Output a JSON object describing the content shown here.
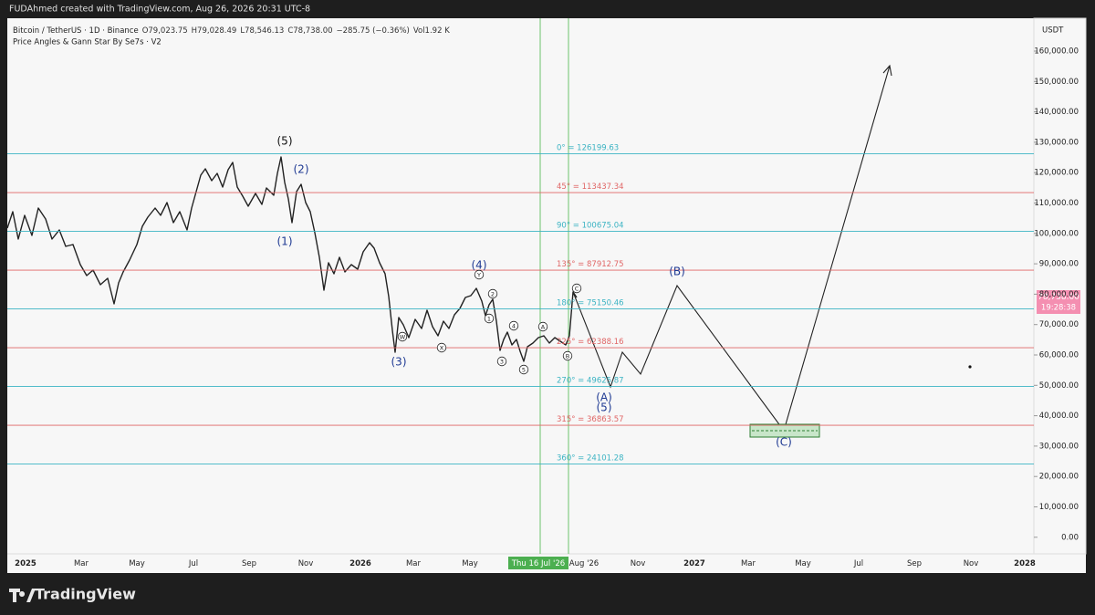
{
  "header": {
    "attribution": "FUDAhmed created with TradingView.com, Aug 26, 2026 20:31 UTC-8"
  },
  "legend": {
    "symbol": "Bitcoin / TetherUS · 1D · Binance",
    "open": "O79,023.75",
    "high": "H79,028.49",
    "low": "L78,546.13",
    "close": "C78,738.00",
    "change": "−285.75 (−0.36%)",
    "volume": "Vol1.92 K",
    "indicator": "Price Angles & Gann Star By Se7s · V2"
  },
  "price_axis": {
    "currency": "USDT",
    "labels": [
      "160,000.00",
      "150,000.00",
      "140,000.00",
      "130,000.00",
      "120,000.00",
      "110,000.00",
      "100,000.00",
      "90,000.00",
      "80,000.00",
      "70,000.00",
      "60,000.00",
      "50,000.00",
      "40,000.00",
      "30,000.00",
      "20,000.00",
      "10,000.00",
      "0.00"
    ]
  },
  "last_price": {
    "price": "78,738.00",
    "countdown": "19:28:38"
  },
  "time_axis": {
    "labels": [
      "2025",
      "Mar",
      "May",
      "Jul",
      "Sep",
      "Nov",
      "2026",
      "Mar",
      "May",
      "Aug '26",
      "Nov",
      "2027",
      "Mar",
      "May",
      "Jul",
      "Sep",
      "Nov",
      "2028"
    ],
    "crosshair": "Thu 16 Jul '26"
  },
  "gann_levels": [
    "0° = 126199.63",
    "45° = 113437.34",
    "90° = 100675.04",
    "135° = 87912.75",
    "180° = 75150.46",
    "225° = 62388.16",
    "270° = 49625.87",
    "315° = 36863.57",
    "360° = 24101.28"
  ],
  "wave_labels": [
    "(5)",
    "(2)",
    "(1)",
    "(3)",
    "(4)",
    "(A)",
    "(5)",
    "(B)",
    "(C)"
  ],
  "minor_wave_labels": [
    "W",
    "X",
    "Y",
    "1",
    "2",
    "3",
    "4",
    "5",
    "A",
    "B",
    "C"
  ],
  "branding": "TradingView"
}
